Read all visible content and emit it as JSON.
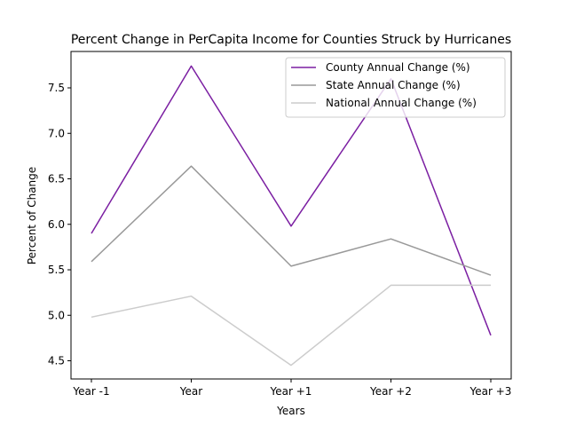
{
  "chart_data": {
    "type": "line",
    "title": "Percent Change in PerCapita Income for Counties Struck by Hurricanes",
    "xlabel": "Years",
    "ylabel": "Percent of Change",
    "categories": [
      "Year -1",
      "Year",
      "Year +1",
      "Year +2",
      "Year +3"
    ],
    "ylim": [
      4.3,
      7.9
    ],
    "yticks": [
      "4.5",
      "5.0",
      "5.5",
      "6.0",
      "6.5",
      "7.0",
      "7.5"
    ],
    "grid": false,
    "legend_position": "top-right",
    "series": [
      {
        "name": "County Annual Change (%)",
        "color": "#7b1fa2",
        "values": [
          5.9,
          7.74,
          5.98,
          7.6,
          4.78
        ]
      },
      {
        "name": "State Annual Change (%)",
        "color": "#999999",
        "values": [
          5.59,
          6.64,
          5.54,
          5.84,
          5.44
        ]
      },
      {
        "name": "National Annual Change (%)",
        "color": "#cccccc",
        "values": [
          4.98,
          5.21,
          4.45,
          5.33,
          5.33
        ]
      }
    ]
  }
}
